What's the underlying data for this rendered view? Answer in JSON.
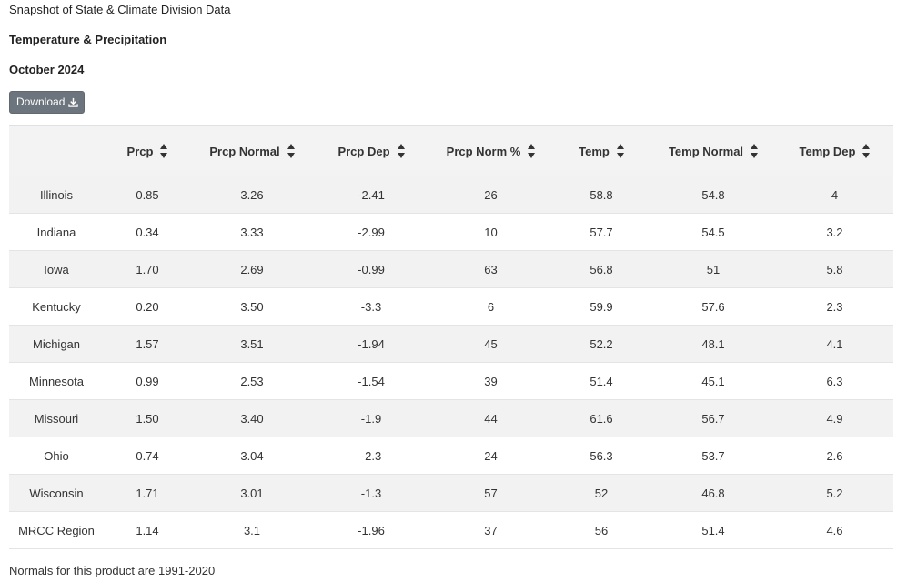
{
  "header": {
    "line1": "Snapshot of State & Climate Division Data",
    "line2": "Temperature & Precipitation",
    "line3": "October 2024"
  },
  "download_button": {
    "label": "Download",
    "icon": "download-icon"
  },
  "table": {
    "columns": [
      "",
      "Prcp",
      "Prcp Normal",
      "Prcp Dep",
      "Prcp Norm %",
      "Temp",
      "Temp Normal",
      "Temp Dep"
    ],
    "sort_icon": "sort-icon",
    "rows": [
      [
        "Illinois",
        "0.85",
        "3.26",
        "-2.41",
        "26",
        "58.8",
        "54.8",
        "4"
      ],
      [
        "Indiana",
        "0.34",
        "3.33",
        "-2.99",
        "10",
        "57.7",
        "54.5",
        "3.2"
      ],
      [
        "Iowa",
        "1.70",
        "2.69",
        "-0.99",
        "63",
        "56.8",
        "51",
        "5.8"
      ],
      [
        "Kentucky",
        "0.20",
        "3.50",
        "-3.3",
        "6",
        "59.9",
        "57.6",
        "2.3"
      ],
      [
        "Michigan",
        "1.57",
        "3.51",
        "-1.94",
        "45",
        "52.2",
        "48.1",
        "4.1"
      ],
      [
        "Minnesota",
        "0.99",
        "2.53",
        "-1.54",
        "39",
        "51.4",
        "45.1",
        "6.3"
      ],
      [
        "Missouri",
        "1.50",
        "3.40",
        "-1.9",
        "44",
        "61.6",
        "56.7",
        "4.9"
      ],
      [
        "Ohio",
        "0.74",
        "3.04",
        "-2.3",
        "24",
        "56.3",
        "53.7",
        "2.6"
      ],
      [
        "Wisconsin",
        "1.71",
        "3.01",
        "-1.3",
        "57",
        "52",
        "46.8",
        "5.2"
      ],
      [
        "MRCC Region",
        "1.14",
        "3.1",
        "-1.96",
        "37",
        "56",
        "51.4",
        "4.6"
      ]
    ]
  },
  "footnote": "Normals for this product are 1991-2020",
  "colors": {
    "button_bg": "#6c757d",
    "header_bg": "#f3f3f3",
    "stripe_bg": "#f2f2f2"
  }
}
